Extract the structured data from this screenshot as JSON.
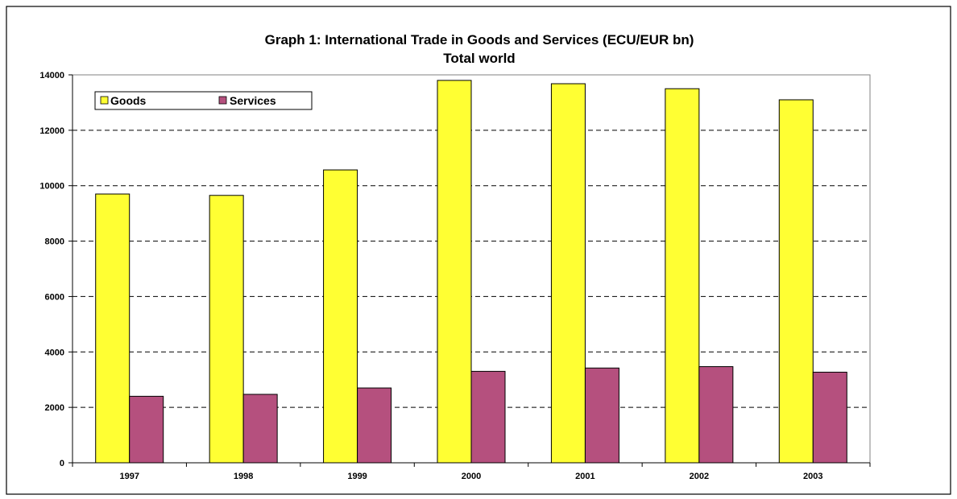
{
  "chart_data": {
    "type": "bar",
    "title": "Graph 1: International Trade in Goods and Services (ECU/EUR bn)",
    "subtitle": "Total world",
    "xlabel": "",
    "ylabel": "",
    "categories": [
      "1997",
      "1998",
      "1999",
      "2000",
      "2001",
      "2002",
      "2003"
    ],
    "series": [
      {
        "name": "Goods",
        "color": "#FFFF33",
        "values": [
          9700,
          9650,
          10570,
          13800,
          13680,
          13500,
          13100
        ]
      },
      {
        "name": "Services",
        "color": "#B5507E",
        "values": [
          2400,
          2470,
          2700,
          3300,
          3420,
          3470,
          3270
        ]
      }
    ],
    "ylim": [
      0,
      14000
    ],
    "yticks": [
      "0",
      "2000",
      "4000",
      "6000",
      "8000",
      "10000",
      "12000",
      "14000"
    ],
    "grid": true,
    "grid_style": "dashed",
    "legend_position": "top-left",
    "plot_background": "#FFFFFF"
  }
}
